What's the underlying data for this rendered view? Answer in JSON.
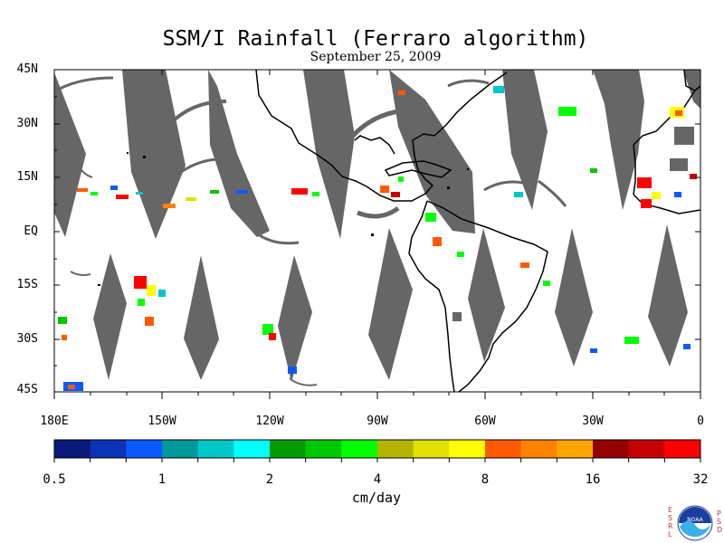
{
  "title": "SSM/I Rainfall (Ferraro algorithm)",
  "subtitle": "September 25, 2009",
  "lat_ticks": [
    "45N",
    "30N",
    "15N",
    "EQ",
    "15S",
    "30S",
    "45S"
  ],
  "lon_ticks": [
    "180E",
    "150W",
    "120W",
    "90W",
    "60W",
    "30W",
    "0"
  ],
  "colorbar": {
    "colors": [
      "#0a1a7a",
      "#0a33b8",
      "#0a5aff",
      "#00999a",
      "#00c8c8",
      "#00ffff",
      "#009c00",
      "#00c800",
      "#00ff00",
      "#b4b400",
      "#e1e100",
      "#ffff00",
      "#ff5a00",
      "#ff8200",
      "#ffa500",
      "#960000",
      "#c80000",
      "#ff0000"
    ],
    "labels": [
      "0.5",
      "1",
      "2",
      "4",
      "8",
      "16",
      "32"
    ],
    "units": "cm/day"
  },
  "logo": {
    "left_letters": "ESRL",
    "right_letters": "PSD",
    "emblem_text": "NOAA"
  }
}
